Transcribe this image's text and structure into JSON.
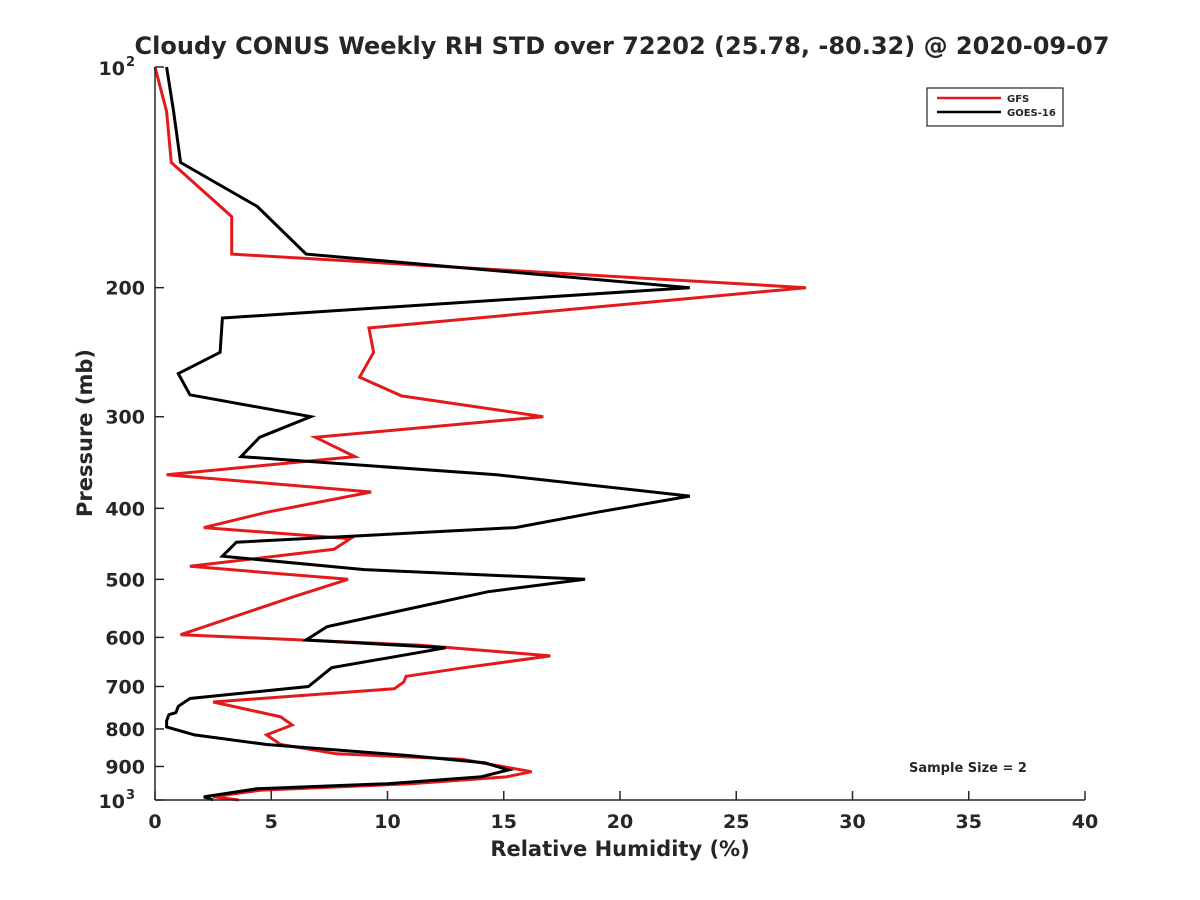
{
  "chart_data": {
    "type": "line",
    "title": "Cloudy CONUS Weekly RH STD over 72202 (25.78, -80.32) @ 2020-09-07",
    "xlabel": "Relative Humidity (%)",
    "ylabel": "Pressure (mb)",
    "xlim": [
      0,
      40
    ],
    "ylim": [
      100,
      1000
    ],
    "yscale": "log",
    "y_reversed": true,
    "grid": false,
    "x_ticks": [
      0,
      5,
      10,
      15,
      20,
      25,
      30,
      35,
      40
    ],
    "y_ticks": [
      {
        "value": 100,
        "base": "10",
        "exp": "2"
      },
      {
        "value": 200,
        "label": "200"
      },
      {
        "value": 300,
        "label": "300"
      },
      {
        "value": 400,
        "label": "400"
      },
      {
        "value": 500,
        "label": "500"
      },
      {
        "value": 600,
        "label": "600"
      },
      {
        "value": 700,
        "label": "700"
      },
      {
        "value": 800,
        "label": "800"
      },
      {
        "value": 900,
        "label": "900"
      },
      {
        "value": 1000,
        "base": "10",
        "exp": "3"
      }
    ],
    "legend_position": "top-right",
    "annotation": "Sample Size = 2",
    "series": [
      {
        "name": "GFS",
        "color": "#e31a1c",
        "points": [
          [
            0,
            100
          ],
          [
            0.5,
            115
          ],
          [
            0.7,
            135
          ],
          [
            3.3,
            160
          ],
          [
            3.3,
            180
          ],
          [
            28.0,
            200
          ],
          [
            9.2,
            227
          ],
          [
            9.4,
            245
          ],
          [
            8.8,
            265
          ],
          [
            10.6,
            281
          ],
          [
            16.7,
            300
          ],
          [
            6.9,
            320
          ],
          [
            8.6,
            340
          ],
          [
            0.5,
            360
          ],
          [
            9.3,
            380
          ],
          [
            4.8,
            405
          ],
          [
            2.1,
            425
          ],
          [
            8.4,
            440
          ],
          [
            7.7,
            455
          ],
          [
            1.5,
            480
          ],
          [
            8.3,
            500
          ],
          [
            5.8,
            530
          ],
          [
            1.1,
            595
          ],
          [
            11.4,
            615
          ],
          [
            17.0,
            636
          ],
          [
            13.3,
            660
          ],
          [
            10.8,
            678
          ],
          [
            10.7,
            690
          ],
          [
            10.3,
            705
          ],
          [
            2.5,
            735
          ],
          [
            5.4,
            770
          ],
          [
            5.9,
            790
          ],
          [
            4.8,
            815
          ],
          [
            5.4,
            840
          ],
          [
            7.8,
            865
          ],
          [
            13.2,
            880
          ],
          [
            16.2,
            915
          ],
          [
            15.1,
            930
          ],
          [
            11.0,
            950
          ],
          [
            4.5,
            970
          ],
          [
            2.5,
            990
          ],
          [
            3.6,
            1000
          ]
        ]
      },
      {
        "name": "GOES-16",
        "color": "#000000",
        "points": [
          [
            0.5,
            100
          ],
          [
            0.8,
            115
          ],
          [
            1.1,
            135
          ],
          [
            4.4,
            155
          ],
          [
            6.5,
            180
          ],
          [
            23.0,
            200
          ],
          [
            2.9,
            220
          ],
          [
            2.8,
            245
          ],
          [
            1.0,
            262
          ],
          [
            1.5,
            280
          ],
          [
            6.7,
            300
          ],
          [
            4.5,
            320
          ],
          [
            3.7,
            340
          ],
          [
            14.7,
            360
          ],
          [
            23.0,
            385
          ],
          [
            19.0,
            405
          ],
          [
            15.5,
            425
          ],
          [
            3.5,
            445
          ],
          [
            2.9,
            465
          ],
          [
            9.0,
            485
          ],
          [
            18.5,
            500
          ],
          [
            14.3,
            520
          ],
          [
            7.4,
            580
          ],
          [
            6.5,
            605
          ],
          [
            12.5,
            620
          ],
          [
            7.6,
            660
          ],
          [
            6.6,
            700
          ],
          [
            1.5,
            727
          ],
          [
            1.0,
            745
          ],
          [
            0.9,
            760
          ],
          [
            0.6,
            765
          ],
          [
            0.5,
            780
          ],
          [
            0.5,
            795
          ],
          [
            1.7,
            815
          ],
          [
            4.8,
            840
          ],
          [
            11.0,
            870
          ],
          [
            14.2,
            890
          ],
          [
            15.2,
            910
          ],
          [
            14.0,
            930
          ],
          [
            10.0,
            950
          ],
          [
            4.4,
            965
          ],
          [
            2.1,
            990
          ],
          [
            2.5,
            1000
          ]
        ]
      }
    ]
  }
}
